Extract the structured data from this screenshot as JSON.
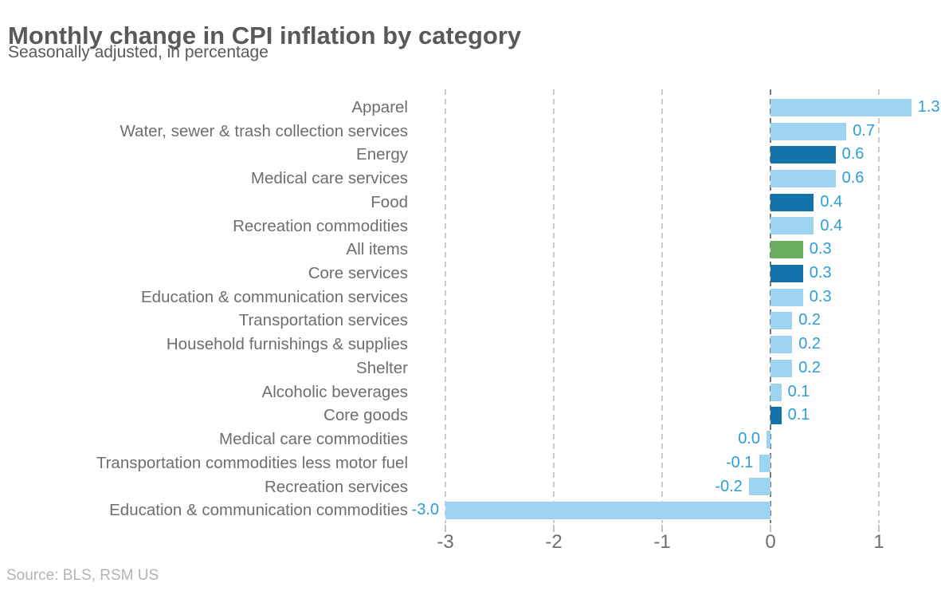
{
  "header": {
    "title": "Monthly change in CPI inflation by category",
    "subtitle": "Seasonally adjusted, in percentage"
  },
  "footer": {
    "source": "Source: BLS, RSM US"
  },
  "colors": {
    "light_blue": "#9cd4f0",
    "dark_blue": "#1173a9",
    "green": "#6aaf60",
    "value_text": "#2b9fd8",
    "grid_minor": "#cbcbcb",
    "grid_zero": "#787878",
    "axis_text": "#6e6e6e",
    "category_text": "#6e6e6e",
    "title_text": "#595959",
    "source_text": "#b3b3b3"
  },
  "chart_data": {
    "type": "bar",
    "orientation": "horizontal",
    "title": "Monthly change in CPI inflation by category",
    "subtitle": "Seasonally adjusted, in percentage",
    "xlabel": "",
    "ylabel": "",
    "xlim": [
      -3.05,
      1.55
    ],
    "x_ticks": [
      -3,
      -2,
      -1,
      0,
      1
    ],
    "grid": "dashed-vertical",
    "legend": "none",
    "categories": [
      "Apparel",
      "Water, sewer & trash collection services",
      "Energy",
      "Medical care services",
      "Food",
      "Recreation commodities",
      "All items",
      "Core services",
      "Education & communication services",
      "Transportation services",
      "Household furnishings & supplies",
      "Shelter",
      "Alcoholic beverages",
      "Core goods",
      "Medical care commodities",
      "Transportation commodities less motor fuel",
      "Recreation services",
      "Education & communication commodities"
    ],
    "values": [
      1.3,
      0.7,
      0.6,
      0.6,
      0.4,
      0.4,
      0.3,
      0.3,
      0.3,
      0.2,
      0.2,
      0.2,
      0.1,
      0.1,
      0.0,
      -0.1,
      -0.2,
      -3.0
    ],
    "value_labels": [
      "1.3",
      "0.7",
      "0.6",
      "0.6",
      "0.4",
      "0.4",
      "0.3",
      "0.3",
      "0.3",
      "0.2",
      "0.2",
      "0.2",
      "0.1",
      "0.1",
      "0.0",
      "-0.1",
      "-0.2",
      "-3.0"
    ],
    "bar_color_keys": [
      "light_blue",
      "light_blue",
      "dark_blue",
      "light_blue",
      "dark_blue",
      "light_blue",
      "green",
      "dark_blue",
      "light_blue",
      "light_blue",
      "light_blue",
      "light_blue",
      "light_blue",
      "dark_blue",
      "light_blue",
      "light_blue",
      "light_blue",
      "light_blue"
    ]
  }
}
